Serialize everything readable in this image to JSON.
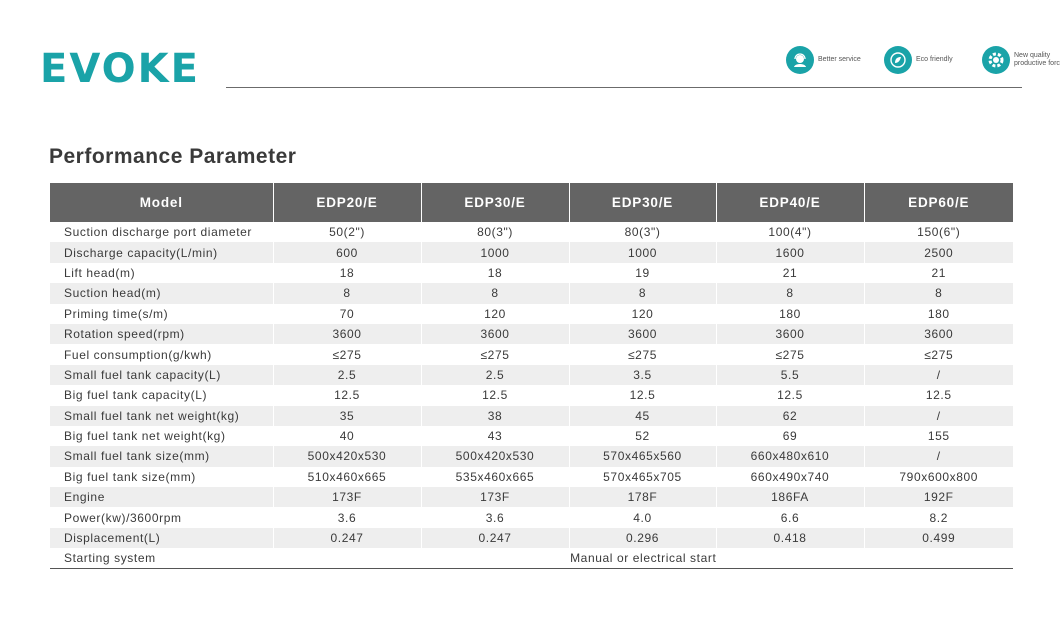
{
  "brand": {
    "name": "EVOKE"
  },
  "badges": [
    {
      "icon": "headset-icon",
      "text": "Better service"
    },
    {
      "icon": "leaf-icon",
      "text": "Eco friendly"
    },
    {
      "icon": "gear-icon",
      "text": "New quality productive forces"
    }
  ],
  "section": {
    "title": "Performance Parameter"
  },
  "table": {
    "header_label": "Model",
    "models": [
      "EDP20/E",
      "EDP30/E",
      "EDP30/E",
      "EDP40/E",
      "EDP60/E"
    ],
    "rows": [
      {
        "label": "Suction discharge port diameter",
        "values": [
          "50(2\")",
          "80(3\")",
          "80(3\")",
          "100(4\")",
          "150(6\")"
        ]
      },
      {
        "label": "Discharge capacity(L/min)",
        "values": [
          "600",
          "1000",
          "1000",
          "1600",
          "2500"
        ]
      },
      {
        "label": "Lift head(m)",
        "values": [
          "18",
          "18",
          "19",
          "21",
          "21"
        ]
      },
      {
        "label": "Suction head(m)",
        "values": [
          "8",
          "8",
          "8",
          "8",
          "8"
        ]
      },
      {
        "label": "Priming time(s/m)",
        "values": [
          "70",
          "120",
          "120",
          "180",
          "180"
        ]
      },
      {
        "label": "Rotation speed(rpm)",
        "values": [
          "3600",
          "3600",
          "3600",
          "3600",
          "3600"
        ]
      },
      {
        "label": "Fuel consumption(g/kwh)",
        "values": [
          "≤275",
          "≤275",
          "≤275",
          "≤275",
          "≤275"
        ]
      },
      {
        "label": "Small fuel tank capacity(L)",
        "values": [
          "2.5",
          "2.5",
          "3.5",
          "5.5",
          "/"
        ]
      },
      {
        "label": "Big fuel tank capacity(L)",
        "values": [
          "12.5",
          "12.5",
          "12.5",
          "12.5",
          "12.5"
        ]
      },
      {
        "label": "Small fuel tank net weight(kg)",
        "values": [
          "35",
          "38",
          "45",
          "62",
          "/"
        ]
      },
      {
        "label": "Big fuel tank net weight(kg)",
        "values": [
          "40",
          "43",
          "52",
          "69",
          "155"
        ]
      },
      {
        "label": "Small fuel tank size(mm)",
        "values": [
          "500x420x530",
          "500x420x530",
          "570x465x560",
          "660x480x610",
          "/"
        ]
      },
      {
        "label": "Big fuel tank size(mm)",
        "values": [
          "510x460x665",
          "535x460x665",
          "570x465x705",
          "660x490x740",
          "790x600x800"
        ]
      },
      {
        "label": "Engine",
        "values": [
          "173F",
          "173F",
          "178F",
          "186FA",
          "192F"
        ]
      },
      {
        "label": "Power(kw)/3600rpm",
        "values": [
          "3.6",
          "3.6",
          "4.0",
          "6.6",
          "8.2"
        ]
      },
      {
        "label": "Displacement(L)",
        "values": [
          "0.247",
          "0.247",
          "0.296",
          "0.418",
          "0.499"
        ]
      }
    ],
    "starting": {
      "label": "Starting system",
      "value": "Manual or electrical start"
    }
  }
}
